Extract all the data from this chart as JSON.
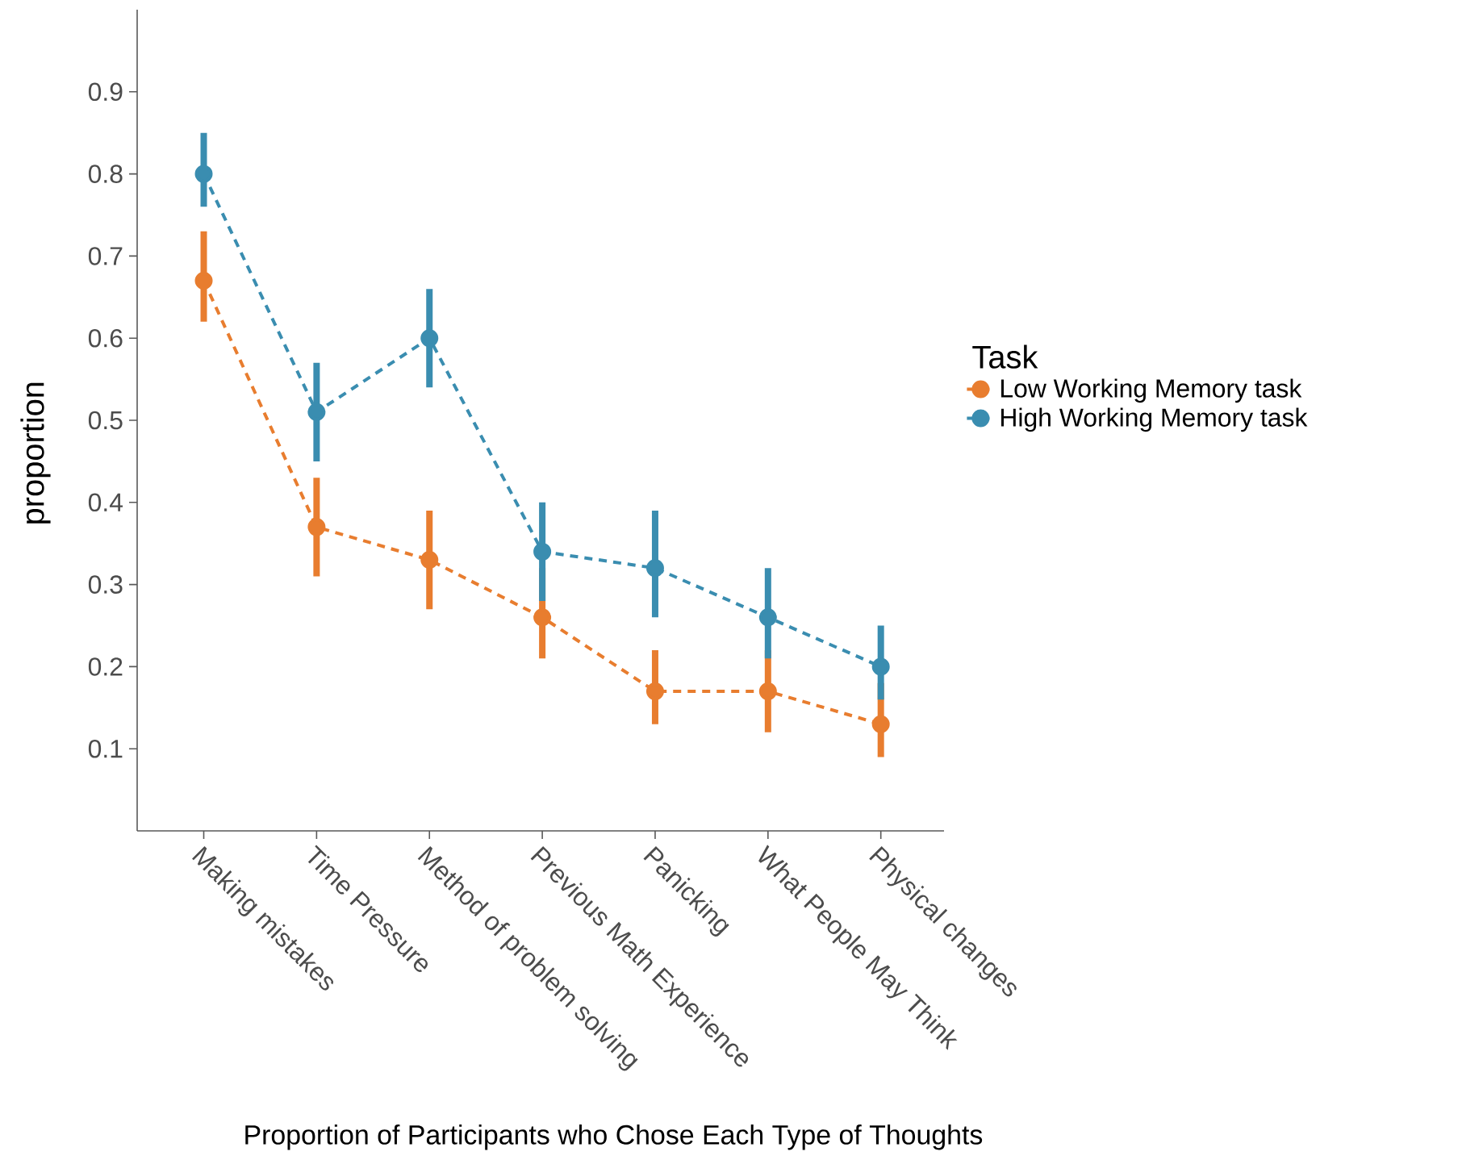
{
  "chart_data": {
    "type": "line",
    "xlabel": "Proportion of Participants who Chose Each Type of Thoughts",
    "ylabel": "proportion",
    "legend_title": "Task",
    "categories": [
      "Making mistakes",
      "Time Pressure",
      "Method of problem solving",
      "Previous Math Experience",
      "Panicking",
      "What People May Think",
      "Physical changes"
    ],
    "series": [
      {
        "name": "Low Working Memory task",
        "color": "#e87d2f",
        "values": [
          0.67,
          0.37,
          0.33,
          0.26,
          0.17,
          0.17,
          0.13
        ],
        "errors": [
          [
            0.62,
            0.73
          ],
          [
            0.31,
            0.43
          ],
          [
            0.27,
            0.39
          ],
          [
            0.21,
            0.32
          ],
          [
            0.13,
            0.22
          ],
          [
            0.12,
            0.22
          ],
          [
            0.09,
            0.18
          ]
        ]
      },
      {
        "name": "High Working Memory task",
        "color": "#3a8db0",
        "values": [
          0.8,
          0.51,
          0.6,
          0.34,
          0.32,
          0.26,
          0.2
        ],
        "errors": [
          [
            0.76,
            0.85
          ],
          [
            0.45,
            0.57
          ],
          [
            0.54,
            0.66
          ],
          [
            0.28,
            0.4
          ],
          [
            0.26,
            0.39
          ],
          [
            0.21,
            0.32
          ],
          [
            0.16,
            0.25
          ]
        ]
      }
    ],
    "ylim": [
      0,
      1
    ],
    "yticks": [
      0.1,
      0.2,
      0.3,
      0.4,
      0.5,
      0.6,
      0.7,
      0.8,
      0.9
    ],
    "grid": false,
    "legend": "right",
    "marker": "circle",
    "line_style": "dashed"
  }
}
